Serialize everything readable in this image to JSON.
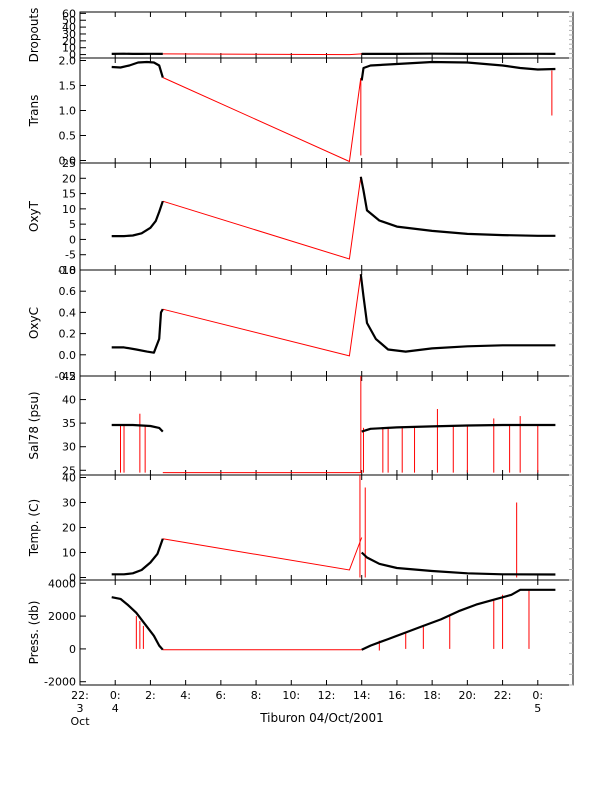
{
  "figure": {
    "caption": "Tiburon 04/Oct/2001"
  },
  "colors": {
    "data": "#000000",
    "flagged": "#ff0000",
    "frame": "#000000",
    "minor": "#b0b0b0"
  },
  "chart_data": {
    "type": "line",
    "xlabel": "Tiburon 04/Oct/2001",
    "xlim": [
      -2,
      26
    ],
    "x_ticks": [
      {
        "x": -2,
        "line1": "22:",
        "line2": "3",
        "line3": "Oct"
      },
      {
        "x": 0,
        "line1": "0:",
        "line2": "4",
        "line3": ""
      },
      {
        "x": 2,
        "line1": "2:",
        "line2": "",
        "line3": ""
      },
      {
        "x": 4,
        "line1": "4:",
        "line2": "",
        "line3": ""
      },
      {
        "x": 6,
        "line1": "6:",
        "line2": "",
        "line3": ""
      },
      {
        "x": 8,
        "line1": "8:",
        "line2": "",
        "line3": ""
      },
      {
        "x": 10,
        "line1": "10:",
        "line2": "",
        "line3": ""
      },
      {
        "x": 12,
        "line1": "12:",
        "line2": "",
        "line3": ""
      },
      {
        "x": 14,
        "line1": "14:",
        "line2": "",
        "line3": ""
      },
      {
        "x": 16,
        "line1": "16:",
        "line2": "",
        "line3": ""
      },
      {
        "x": 18,
        "line1": "18:",
        "line2": "",
        "line3": ""
      },
      {
        "x": 20,
        "line1": "20:",
        "line2": "",
        "line3": ""
      },
      {
        "x": 22,
        "line1": "22:",
        "line2": "",
        "line3": ""
      },
      {
        "x": 24,
        "line1": "0:",
        "line2": "5",
        "line3": ""
      }
    ],
    "panels": [
      {
        "ylabel": "Dropouts",
        "ylim": [
          -5,
          62
        ],
        "yticks": [
          {
            "v": 0,
            "l": "0"
          },
          {
            "v": 10,
            "l": "10"
          },
          {
            "v": 20,
            "l": "20"
          },
          {
            "v": 30,
            "l": "30"
          },
          {
            "v": 40,
            "l": "40"
          },
          {
            "v": 50,
            "l": "50"
          },
          {
            "v": 60,
            "l": "60"
          }
        ],
        "black": [
          [
            [
              -0.2,
              1
            ],
            [
              0.5,
              1.2
            ],
            [
              1.0,
              0.9
            ],
            [
              1.5,
              1
            ],
            [
              2.0,
              1.1
            ],
            [
              2.7,
              1
            ]
          ],
          [
            [
              14.0,
              1
            ],
            [
              16,
              1
            ],
            [
              18,
              1.2
            ],
            [
              20,
              1
            ],
            [
              22,
              1
            ],
            [
              24,
              1.1
            ],
            [
              25.0,
              1
            ]
          ]
        ],
        "red": [
          [
            [
              2.7,
              1
            ],
            [
              13.3,
              0
            ],
            [
              14.0,
              1
            ]
          ]
        ],
        "spikes": []
      },
      {
        "ylabel": "Trans",
        "ylim": [
          -0.05,
          2.05
        ],
        "yticks": [
          {
            "v": 0,
            "l": "0.0"
          },
          {
            "v": 0.5,
            "l": "0.5"
          },
          {
            "v": 1.0,
            "l": "1.0"
          },
          {
            "v": 1.5,
            "l": "1.5"
          },
          {
            "v": 2.0,
            "l": "2.0"
          }
        ],
        "black": [
          [
            [
              -0.2,
              1.87
            ],
            [
              0.3,
              1.86
            ],
            [
              0.8,
              1.9
            ],
            [
              1.3,
              1.96
            ],
            [
              1.8,
              1.97
            ],
            [
              2.2,
              1.96
            ],
            [
              2.5,
              1.9
            ],
            [
              2.7,
              1.66
            ]
          ],
          [
            [
              14.0,
              1.6
            ],
            [
              14.1,
              1.85
            ],
            [
              14.5,
              1.9
            ],
            [
              16,
              1.93
            ],
            [
              18,
              1.97
            ],
            [
              20,
              1.96
            ],
            [
              22,
              1.9
            ],
            [
              23,
              1.85
            ],
            [
              24,
              1.82
            ],
            [
              25.0,
              1.83
            ]
          ]
        ],
        "red": [
          [
            [
              2.7,
              1.66
            ],
            [
              13.3,
              -0.02
            ],
            [
              13.95,
              1.65
            ]
          ]
        ],
        "spikes": [
          [
            13.95,
            1.65,
            0.1
          ],
          [
            24.8,
            1.8,
            0.9
          ]
        ]
      },
      {
        "ylabel": "OxyT",
        "ylim": [
          -10,
          25
        ],
        "yticks": [
          {
            "v": -10,
            "l": "-10"
          },
          {
            "v": -5,
            "l": "-5"
          },
          {
            "v": 0,
            "l": "0"
          },
          {
            "v": 5,
            "l": "5"
          },
          {
            "v": 10,
            "l": "10"
          },
          {
            "v": 15,
            "l": "15"
          },
          {
            "v": 20,
            "l": "20"
          },
          {
            "v": 25,
            "l": "25"
          }
        ],
        "black": [
          [
            [
              -0.2,
              1.1
            ],
            [
              0.5,
              1.1
            ],
            [
              1.0,
              1.3
            ],
            [
              1.5,
              2
            ],
            [
              2.0,
              3.8
            ],
            [
              2.3,
              6
            ],
            [
              2.5,
              9
            ],
            [
              2.7,
              12.5
            ]
          ],
          [
            [
              13.95,
              20.5
            ],
            [
              14.1,
              16
            ],
            [
              14.3,
              9.5
            ],
            [
              15,
              6.2
            ],
            [
              16,
              4.2
            ],
            [
              18,
              2.8
            ],
            [
              20,
              1.8
            ],
            [
              22,
              1.4
            ],
            [
              24,
              1.2
            ],
            [
              25.0,
              1.2
            ]
          ]
        ],
        "red": [
          [
            [
              2.7,
              12.5
            ],
            [
              13.3,
              -6.4
            ],
            [
              13.95,
              20.5
            ]
          ]
        ],
        "spikes": []
      },
      {
        "ylabel": "OxyC",
        "ylim": [
          -0.2,
          0.8
        ],
        "yticks": [
          {
            "v": -0.2,
            "l": "-0.2"
          },
          {
            "v": 0.0,
            "l": "0.0"
          },
          {
            "v": 0.2,
            "l": "0.2"
          },
          {
            "v": 0.4,
            "l": "0.4"
          },
          {
            "v": 0.6,
            "l": "0.6"
          },
          {
            "v": 0.8,
            "l": "0.8"
          }
        ],
        "black": [
          [
            [
              -0.2,
              0.07
            ],
            [
              0.5,
              0.07
            ],
            [
              1.2,
              0.05
            ],
            [
              1.8,
              0.03
            ],
            [
              2.2,
              0.02
            ],
            [
              2.5,
              0.15
            ],
            [
              2.6,
              0.4
            ],
            [
              2.7,
              0.43
            ]
          ],
          [
            [
              13.95,
              0.76
            ],
            [
              14.1,
              0.55
            ],
            [
              14.3,
              0.3
            ],
            [
              14.8,
              0.15
            ],
            [
              15.5,
              0.05
            ],
            [
              16.5,
              0.03
            ],
            [
              18,
              0.06
            ],
            [
              20,
              0.08
            ],
            [
              22,
              0.09
            ],
            [
              25.0,
              0.09
            ]
          ]
        ],
        "red": [
          [
            [
              2.7,
              0.43
            ],
            [
              13.3,
              -0.01
            ],
            [
              13.95,
              0.76
            ]
          ]
        ],
        "spikes": []
      },
      {
        "ylabel": "Sal78 (psu)",
        "ylim": [
          24,
          45
        ],
        "yticks": [
          {
            "v": 25,
            "l": "25"
          },
          {
            "v": 30,
            "l": "30"
          },
          {
            "v": 35,
            "l": "35"
          },
          {
            "v": 40,
            "l": "40"
          },
          {
            "v": 45,
            "l": "45"
          }
        ],
        "black": [
          [
            [
              -0.2,
              34.6
            ],
            [
              1.0,
              34.6
            ],
            [
              2.0,
              34.4
            ],
            [
              2.5,
              34.0
            ],
            [
              2.7,
              33.2
            ]
          ],
          [
            [
              14.0,
              33.2
            ],
            [
              14.5,
              33.8
            ],
            [
              16,
              34.1
            ],
            [
              18,
              34.3
            ],
            [
              20,
              34.5
            ],
            [
              22,
              34.6
            ],
            [
              25.0,
              34.6
            ]
          ]
        ],
        "red": [
          [
            [
              2.7,
              24.5
            ],
            [
              14.0,
              24.5
            ]
          ]
        ],
        "spikes": [
          [
            0.3,
            34.6,
            24.5
          ],
          [
            0.5,
            34.6,
            24.5
          ],
          [
            1.4,
            37,
            24.5
          ],
          [
            1.7,
            34.6,
            24.5
          ],
          [
            13.95,
            45,
            24.5
          ],
          [
            14.1,
            34,
            24.5
          ],
          [
            15.2,
            34,
            24.5
          ],
          [
            15.5,
            34.2,
            24.5
          ],
          [
            16.3,
            34.2,
            24.5
          ],
          [
            17.0,
            34.3,
            24.5
          ],
          [
            18.3,
            38,
            24.5
          ],
          [
            19.2,
            34.5,
            24.5
          ],
          [
            20.0,
            34.5,
            24.5
          ],
          [
            21.5,
            36,
            24.5
          ],
          [
            22.4,
            34.6,
            24.5
          ],
          [
            23.0,
            36.5,
            24.5
          ],
          [
            24.0,
            34.6,
            24.5
          ]
        ]
      },
      {
        "ylabel": "Temp. (C)",
        "ylim": [
          -1,
          41
        ],
        "yticks": [
          {
            "v": 0,
            "l": "0"
          },
          {
            "v": 10,
            "l": "10"
          },
          {
            "v": 20,
            "l": "20"
          },
          {
            "v": 30,
            "l": "30"
          },
          {
            "v": 40,
            "l": "40"
          }
        ],
        "black": [
          [
            [
              -0.2,
              1.3
            ],
            [
              0.5,
              1.3
            ],
            [
              1.0,
              1.7
            ],
            [
              1.5,
              3
            ],
            [
              2.0,
              6
            ],
            [
              2.4,
              9.5
            ],
            [
              2.7,
              15.5
            ]
          ],
          [
            [
              14.0,
              10
            ],
            [
              14.3,
              8
            ],
            [
              15,
              5.5
            ],
            [
              16,
              3.8
            ],
            [
              18,
              2.6
            ],
            [
              20,
              1.7
            ],
            [
              22,
              1.3
            ],
            [
              25.0,
              1.2
            ]
          ]
        ],
        "red": [
          [
            [
              2.7,
              15.5
            ],
            [
              13.3,
              3
            ],
            [
              14.0,
              16
            ]
          ]
        ],
        "spikes": [
          [
            13.9,
            41,
            0
          ],
          [
            14.2,
            36,
            0
          ],
          [
            22.8,
            30,
            0
          ]
        ]
      },
      {
        "ylabel": "Press. (db)",
        "ylim": [
          -2200,
          4200
        ],
        "yticks": [
          {
            "v": -2000,
            "l": "-2000"
          },
          {
            "v": 0,
            "l": "0"
          },
          {
            "v": 2000,
            "l": "2000"
          },
          {
            "v": 4000,
            "l": "4000"
          }
        ],
        "black": [
          [
            [
              -0.2,
              3150
            ],
            [
              0.3,
              3050
            ],
            [
              0.7,
              2700
            ],
            [
              1.2,
              2200
            ],
            [
              1.7,
              1500
            ],
            [
              2.2,
              800
            ],
            [
              2.5,
              200
            ],
            [
              2.7,
              -50
            ]
          ],
          [
            [
              14.0,
              -50
            ],
            [
              14.5,
              200
            ],
            [
              15.5,
              600
            ],
            [
              16.5,
              1000
            ],
            [
              17.5,
              1400
            ],
            [
              18.5,
              1800
            ],
            [
              19.5,
              2300
            ],
            [
              20.5,
              2700
            ],
            [
              21.5,
              3000
            ],
            [
              22.5,
              3300
            ],
            [
              23.0,
              3600
            ],
            [
              25.0,
              3600
            ]
          ]
        ],
        "red": [
          [
            [
              2.7,
              -50
            ],
            [
              14.0,
              -50
            ]
          ]
        ],
        "spikes": [
          [
            1.2,
            2000,
            0
          ],
          [
            1.4,
            1700,
            0
          ],
          [
            1.6,
            1400,
            0
          ],
          [
            15.0,
            500,
            -100
          ],
          [
            16.5,
            1000,
            0
          ],
          [
            17.5,
            1400,
            0
          ],
          [
            19.0,
            2000,
            0
          ],
          [
            21.5,
            3000,
            0
          ],
          [
            22.0,
            3300,
            0
          ],
          [
            23.5,
            3600,
            0
          ]
        ]
      }
    ]
  }
}
